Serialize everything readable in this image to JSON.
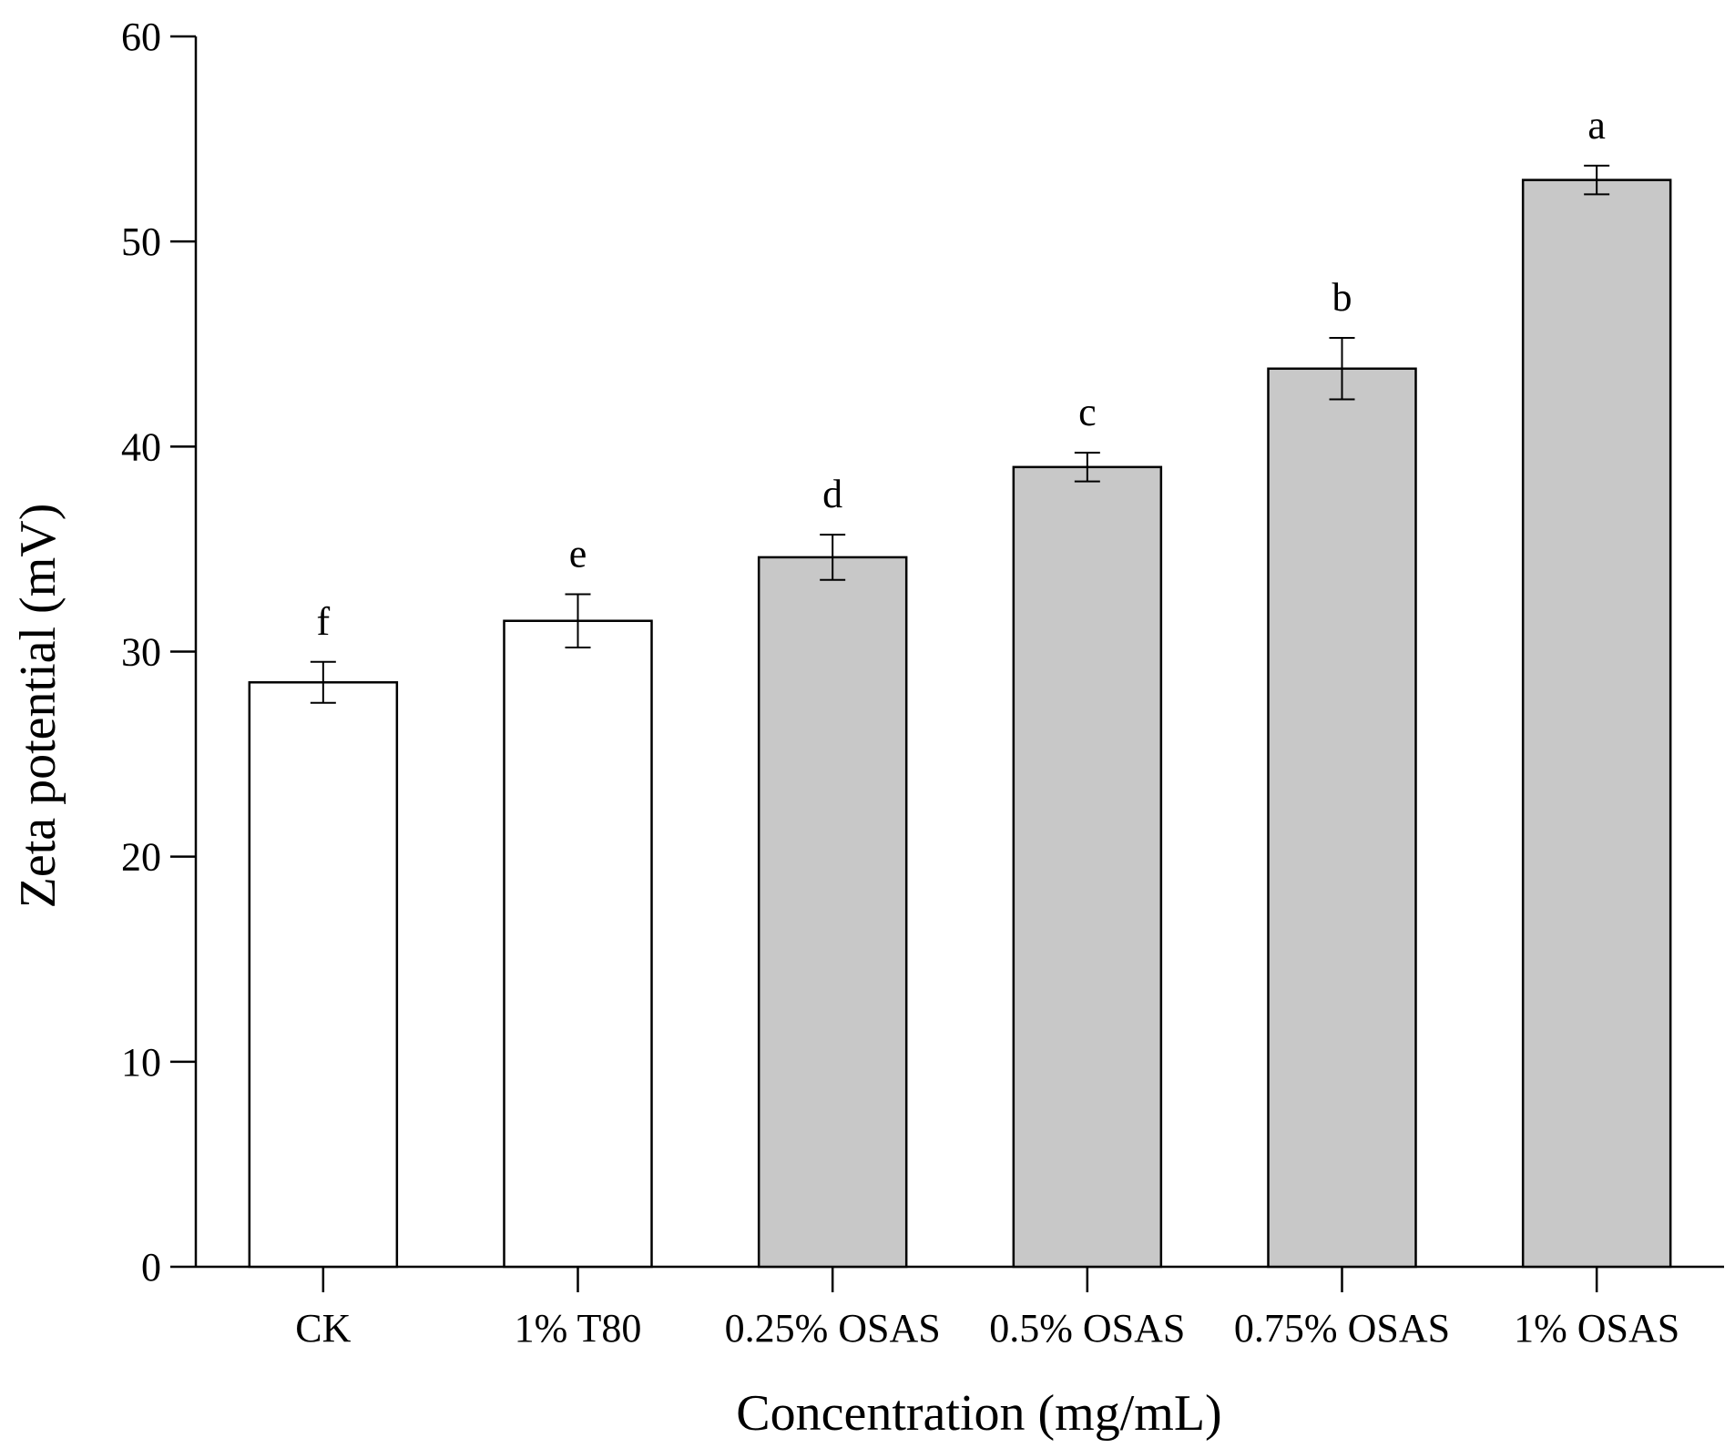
{
  "chart_data": {
    "type": "bar",
    "xlabel": "Concentration (mg/mL)",
    "ylabel": "Zeta potential (mV)",
    "ylim": [
      0,
      60
    ],
    "yticks": [
      0,
      10,
      20,
      30,
      40,
      50,
      60
    ],
    "grid": false,
    "legend": "none",
    "categories": [
      "CK",
      "1% T80",
      "0.25% OSAS",
      "0.5% OSAS",
      "0.75% OSAS",
      "1% OSAS"
    ],
    "values": [
      28.5,
      31.5,
      34.6,
      39.0,
      43.8,
      53.0
    ],
    "errors": [
      1.0,
      1.3,
      1.1,
      0.7,
      1.5,
      0.7
    ],
    "significance_letters": [
      "f",
      "e",
      "d",
      "c",
      "b",
      "a"
    ],
    "bar_colors": [
      "#ffffff",
      "#ffffff",
      "#c8c8c8",
      "#c8c8c8",
      "#c8c8c8",
      "#c8c8c8"
    ],
    "edge_color": "#000000"
  }
}
